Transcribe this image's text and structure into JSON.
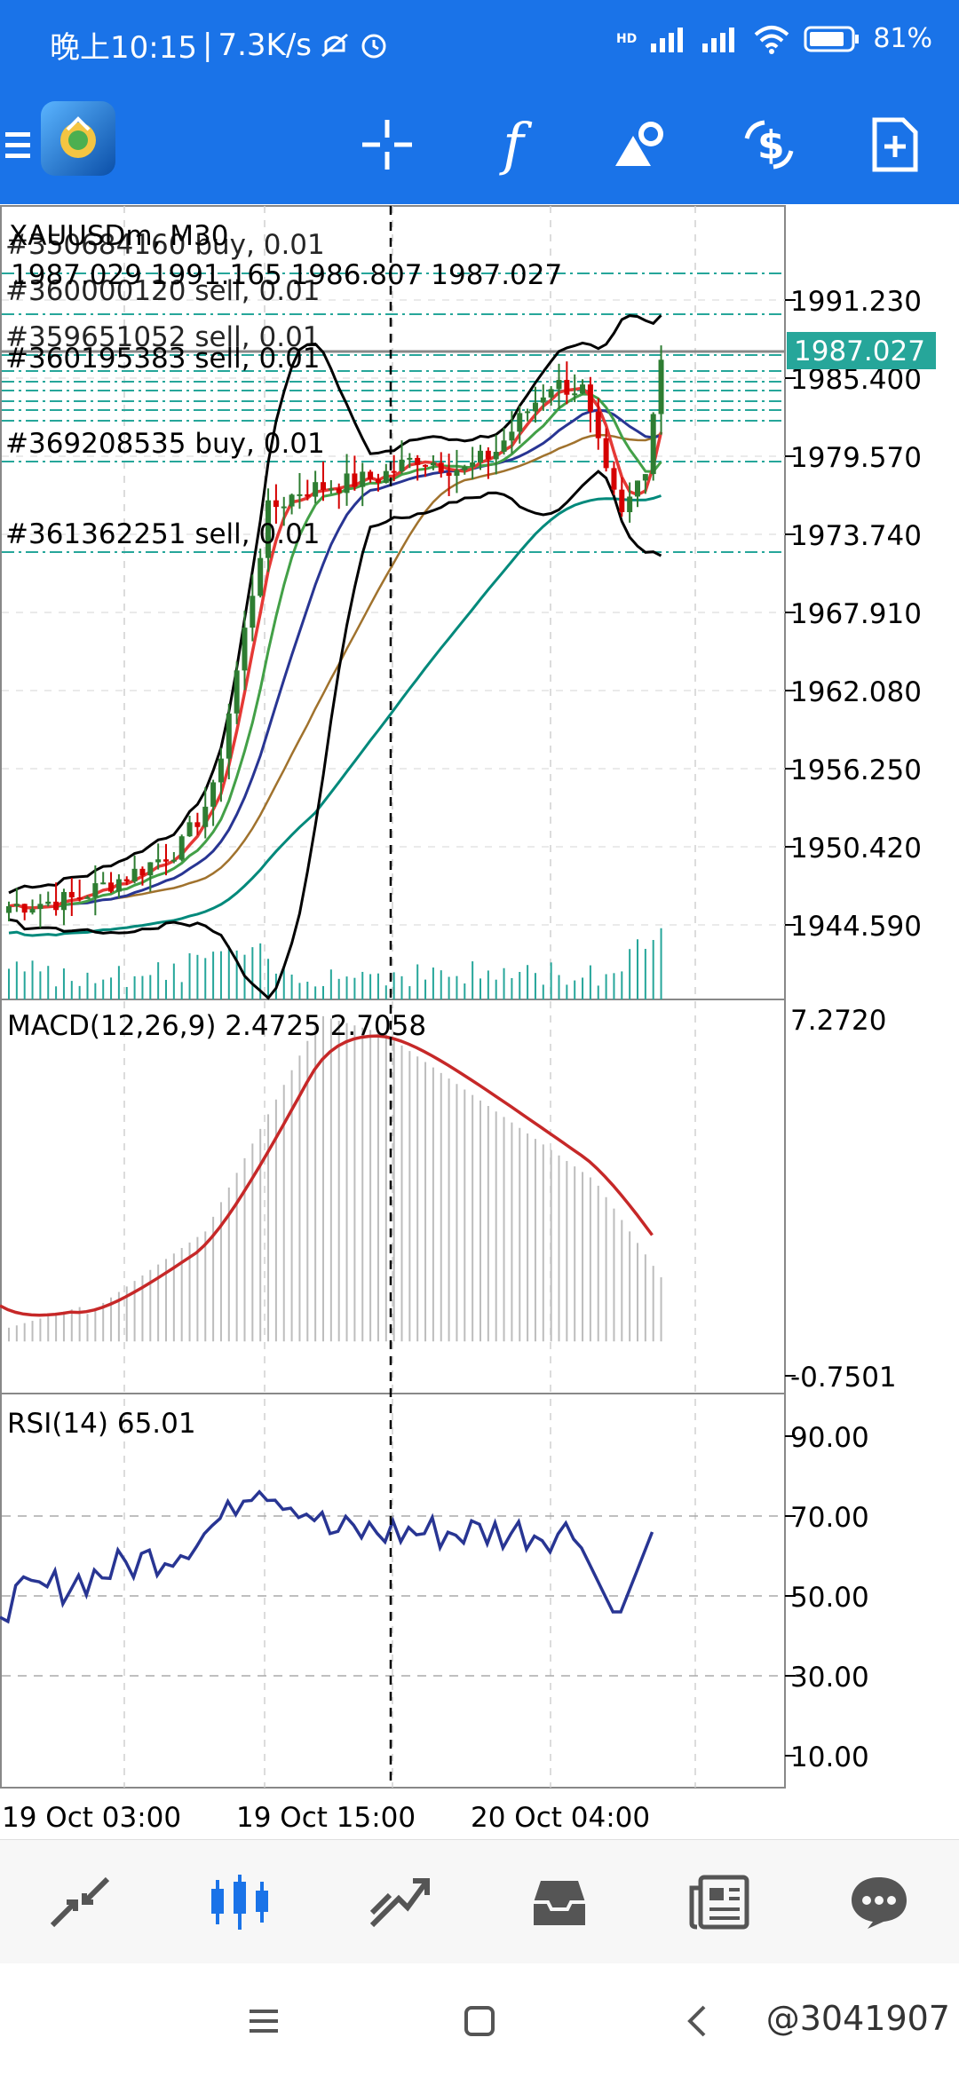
{
  "status_bar": {
    "time": "晚上10:15",
    "net_speed": "7.3K/s",
    "battery": "81%",
    "signal_label": "HD"
  },
  "toolbar": {
    "icons": [
      "menu-icon",
      "app-logo",
      "crosshair-icon",
      "function-icon",
      "objects-icon",
      "trade-icon",
      "new-order-icon"
    ],
    "function_glyph": "f"
  },
  "chart": {
    "symbol_title": "XAUUSDm, M30",
    "ohlc": "1987.029 1991.165 1986.807 1987.027",
    "current_price": "1987.027",
    "colors": {
      "price_tag": "#26a69a",
      "candle_up": "#2e7d32",
      "candle_down": "#d50000",
      "ma_red": "#e53935",
      "ma_green": "#43a047",
      "ma_blue": "#283593",
      "ma_brown": "#a0722d",
      "ma_teal": "#00897b",
      "bands": "#000000",
      "macd_signal": "#c62828",
      "rsi_line": "#283593"
    },
    "orders": [
      {
        "label": "#350684160 buy, 0.01"
      },
      {
        "label": "#360000120 sell, 0.01"
      },
      {
        "label": "#359651052 sell, 0.01"
      },
      {
        "label": "#360195383 sell, 0.01"
      },
      {
        "label": "#369208535 buy, 0.01"
      },
      {
        "label": "#361362251 sell, 0.01"
      }
    ],
    "price_axis": [
      "1991.230",
      "1985.400",
      "1979.570",
      "1973.740",
      "1967.910",
      "1962.080",
      "1956.250",
      "1950.420",
      "1944.590"
    ],
    "macd": {
      "label": "MACD(12,26,9) 2.4725 2.7058",
      "axis_top": "7.2720",
      "axis_bottom": "-0.7501"
    },
    "rsi": {
      "label": "RSI(14) 65.01",
      "levels": [
        "90.00",
        "70.00",
        "50.00",
        "30.00",
        "10.00"
      ]
    },
    "time_axis": [
      "19 Oct 03:00",
      "19 Oct 15:00",
      "20 Oct 04:00"
    ]
  },
  "bottom_nav": {
    "items": [
      "quotes-icon",
      "chart-icon",
      "trade-icon",
      "history-icon",
      "news-icon",
      "chat-icon"
    ]
  },
  "system_nav": {
    "watermark": "@3041907"
  }
}
